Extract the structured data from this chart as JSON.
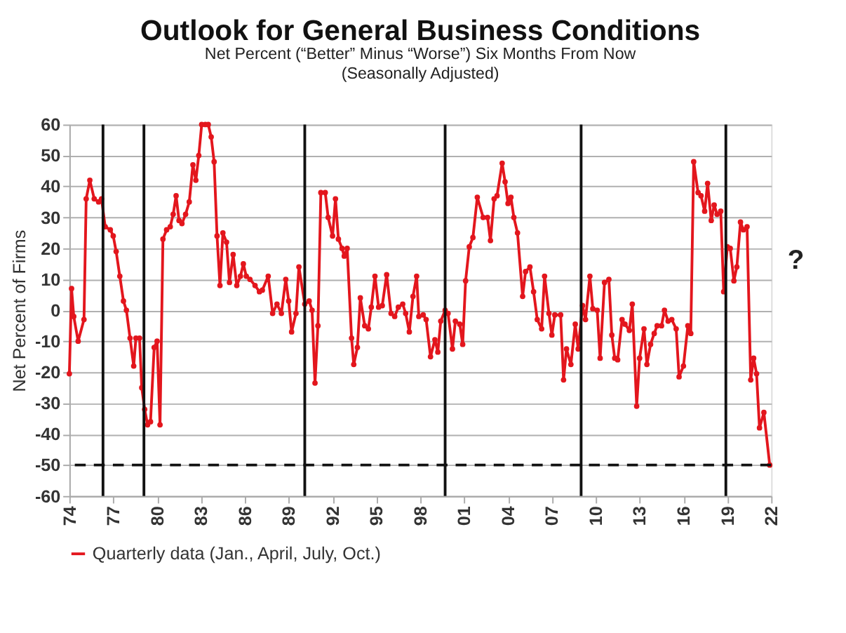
{
  "chart_data": {
    "type": "line",
    "title": "Outlook for General Business Conditions",
    "subtitle": "Net Percent (“Better” Minus “Worse”) Six Months From Now\n(Seasonally Adjusted)",
    "ylabel": "Net Percent of Firms",
    "x": [
      1974.0,
      1974.15,
      1974.3,
      1974.6,
      1975.0,
      1975.15,
      1975.4,
      1975.7,
      1976.0,
      1976.2,
      1976.45,
      1976.8,
      1977.0,
      1977.2,
      1977.45,
      1977.7,
      1977.9,
      1978.15,
      1978.4,
      1978.55,
      1978.8,
      1978.95,
      1979.15,
      1979.35,
      1979.55,
      1979.8,
      1980.0,
      1980.2,
      1980.4,
      1980.65,
      1980.9,
      1981.1,
      1981.3,
      1981.5,
      1981.7,
      1981.95,
      1982.2,
      1982.45,
      1982.65,
      1982.85,
      1983.05,
      1983.3,
      1983.5,
      1983.7,
      1983.9,
      1984.1,
      1984.3,
      1984.5,
      1984.75,
      1984.95,
      1985.2,
      1985.45,
      1985.7,
      1985.9,
      1986.1,
      1986.35,
      1986.7,
      1987.0,
      1987.2,
      1987.6,
      1987.9,
      1988.2,
      1988.5,
      1988.8,
      1989.0,
      1989.2,
      1989.5,
      1989.7,
      1990.1,
      1990.4,
      1990.6,
      1990.8,
      1991.0,
      1991.2,
      1991.5,
      1991.7,
      1992.0,
      1992.2,
      1992.4,
      1992.65,
      1992.8,
      1993.0,
      1993.3,
      1993.45,
      1993.7,
      1993.9,
      1994.2,
      1994.45,
      1994.65,
      1994.9,
      1995.15,
      1995.4,
      1995.7,
      1996.0,
      1996.25,
      1996.5,
      1996.8,
      1997.0,
      1997.25,
      1997.5,
      1997.75,
      1997.9,
      1998.2,
      1998.4,
      1998.7,
      1999.0,
      1999.2,
      1999.4,
      1999.7,
      1999.9,
      2000.2,
      2000.4,
      2000.7,
      2000.9,
      2001.1,
      2001.35,
      2001.6,
      2001.9,
      2002.3,
      2002.6,
      2002.8,
      2003.05,
      2003.25,
      2003.6,
      2003.8,
      2004.0,
      2004.2,
      2004.4,
      2004.65,
      2005.0,
      2005.2,
      2005.5,
      2005.75,
      2006.0,
      2006.3,
      2006.5,
      2006.8,
      2007.0,
      2007.2,
      2007.6,
      2007.8,
      2008.0,
      2008.3,
      2008.6,
      2008.8,
      2009.1,
      2009.3,
      2009.6,
      2009.8,
      2010.1,
      2010.3,
      2010.6,
      2010.9,
      2011.1,
      2011.3,
      2011.5,
      2011.8,
      2012.0,
      2012.3,
      2012.5,
      2012.8,
      2013.0,
      2013.3,
      2013.5,
      2013.75,
      2014.0,
      2014.2,
      2014.5,
      2014.7,
      2014.95,
      2015.2,
      2015.5,
      2015.7,
      2016.0,
      2016.3,
      2016.5,
      2016.7,
      2017.0,
      2017.2,
      2017.45,
      2017.65,
      2017.9,
      2018.1,
      2018.3,
      2018.55,
      2018.75,
      2019.0,
      2019.2,
      2019.45,
      2019.65,
      2019.9,
      2020.1,
      2020.35,
      2020.6,
      2020.8,
      2021.0,
      2021.2,
      2021.5,
      2021.9
    ],
    "series": [
      {
        "name": "Quarterly data (Jan., April, July, Oct.)",
        "color": "#e3161d",
        "values": [
          -20.5,
          7,
          -2,
          -10,
          -3,
          36,
          42,
          36,
          35,
          36,
          27,
          26,
          24,
          19,
          11,
          3,
          0,
          -9,
          -18,
          -9,
          -9,
          -25,
          -32,
          -37,
          -36,
          -12,
          -10,
          -37,
          23,
          26,
          27,
          31,
          37,
          29,
          28,
          31,
          35,
          47,
          42,
          50,
          60,
          60,
          60,
          56,
          48,
          24,
          8,
          25,
          22,
          9,
          18,
          8,
          11,
          15,
          11,
          10,
          8,
          6,
          6.5,
          11,
          -1,
          2,
          -1,
          10,
          3,
          -7,
          -1,
          14,
          2,
          3,
          0,
          -23.5,
          -5,
          38,
          38,
          30,
          24,
          36,
          23,
          20,
          17.5,
          20,
          -9,
          -17.5,
          -12,
          4,
          -5,
          -6,
          1,
          11,
          1,
          1.5,
          11.5,
          -1,
          -2,
          1,
          2,
          -1,
          -7,
          4.5,
          11,
          -2,
          -1.5,
          -3,
          -15,
          -9.5,
          -13.5,
          -3.5,
          0,
          -1,
          -12.5,
          -3.5,
          -4.5,
          -11,
          9.5,
          20.5,
          23.5,
          36.5,
          30,
          30,
          22.5,
          36,
          37,
          47.5,
          41.5,
          34.5,
          36.5,
          30,
          25,
          4.5,
          12.5,
          14,
          6,
          -3,
          -6,
          11,
          -1,
          -8,
          -1.5,
          -1.5,
          -22.5,
          -12.5,
          -17.5,
          -4.5,
          -12.5,
          1.5,
          -3,
          11,
          0.5,
          0,
          -15.5,
          9,
          10,
          -8,
          -15.5,
          -16,
          -3,
          -4.5,
          -6.5,
          2,
          -31,
          -15.5,
          -6,
          -17.5,
          -11,
          -7.5,
          -5,
          -5,
          0,
          -3.5,
          -3,
          -6,
          -21.5,
          -18,
          -5,
          -7.5,
          48,
          38,
          37,
          32,
          41,
          29,
          34,
          31,
          32,
          6,
          20.5,
          20,
          9.5,
          14,
          28.5,
          26,
          27,
          -22.5,
          -15.5,
          -20.5,
          -38,
          -33,
          -50
        ]
      }
    ],
    "xlim": [
      1974,
      2022
    ],
    "xticks": [
      {
        "value": 1974,
        "label": "74"
      },
      {
        "value": 1977,
        "label": "77"
      },
      {
        "value": 1980,
        "label": "80"
      },
      {
        "value": 1983,
        "label": "83"
      },
      {
        "value": 1986,
        "label": "86"
      },
      {
        "value": 1989,
        "label": "89"
      },
      {
        "value": 1992,
        "label": "92"
      },
      {
        "value": 1995,
        "label": "95"
      },
      {
        "value": 1998,
        "label": "98"
      },
      {
        "value": 2001,
        "label": "01"
      },
      {
        "value": 2004,
        "label": "04"
      },
      {
        "value": 2007,
        "label": "07"
      },
      {
        "value": 2010,
        "label": "10"
      },
      {
        "value": 2013,
        "label": "13"
      },
      {
        "value": 2016,
        "label": "16"
      },
      {
        "value": 2019,
        "label": "19"
      },
      {
        "value": 2022,
        "label": "22"
      }
    ],
    "ylim": [
      -60,
      60
    ],
    "yticks": [
      -60,
      -50,
      -40,
      -30,
      -20,
      -10,
      0,
      10,
      20,
      30,
      40,
      50,
      60
    ],
    "grid": "y",
    "marker": "circle",
    "line_style": "solid",
    "legend": "bottom",
    "ref_lines": [
      {
        "axis": "x",
        "value": 1976.3,
        "color": "#111111",
        "line_style": "solid"
      },
      {
        "axis": "x",
        "value": 1979.1,
        "color": "#111111",
        "line_style": "solid"
      },
      {
        "axis": "x",
        "value": 1990.1,
        "color": "#111111",
        "line_style": "solid"
      },
      {
        "axis": "x",
        "value": 1999.7,
        "color": "#111111",
        "line_style": "solid"
      },
      {
        "axis": "x",
        "value": 2009.0,
        "color": "#111111",
        "line_style": "solid"
      },
      {
        "axis": "x",
        "value": 2018.9,
        "color": "#111111",
        "line_style": "solid"
      },
      {
        "axis": "y",
        "value": -50,
        "color": "#111111",
        "line_style": "dashed"
      }
    ],
    "annotations": [
      "?"
    ]
  }
}
